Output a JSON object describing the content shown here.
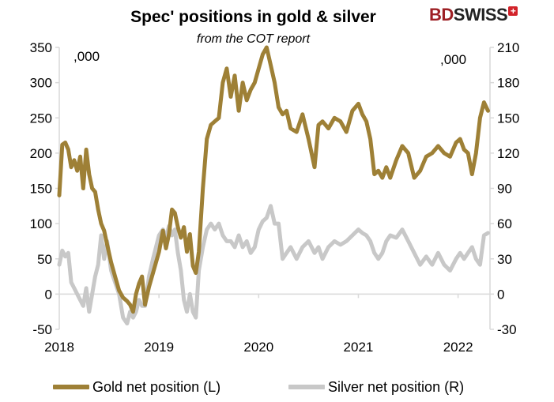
{
  "title": "Spec' positions in gold & silver",
  "subtitle": "from the COT report",
  "logo": {
    "part1": "BD",
    "part2": "SWISS",
    "mark": "+"
  },
  "colors": {
    "gold": "#9e8036",
    "silver": "#c8c8c8",
    "brand_red": "#9d1f24",
    "axis": "#d9d9d9"
  },
  "chart_data": {
    "type": "line",
    "x_ticks": [
      "2018",
      "2019",
      "2020",
      "2021",
      "2022"
    ],
    "x_range": [
      2018.0,
      2022.32
    ],
    "left_axis": {
      "label": "Gold net position (L)",
      "unit_note": ",000",
      "range": [
        -50,
        350
      ],
      "ticks": [
        "-50",
        "0",
        "50",
        "100",
        "150",
        "200",
        "250",
        "300",
        "350"
      ]
    },
    "right_axis": {
      "label": "Silver net position (R)",
      "unit_note": ",000",
      "range": [
        -30,
        210
      ],
      "ticks": [
        "-30",
        "0",
        "30",
        "60",
        "90",
        "120",
        "150",
        "180",
        "210"
      ]
    },
    "series": [
      {
        "name": "Gold net position (L)",
        "axis": "left",
        "x": [
          2018.0,
          2018.03,
          2018.06,
          2018.09,
          2018.12,
          2018.15,
          2018.18,
          2018.21,
          2018.24,
          2018.27,
          2018.3,
          2018.33,
          2018.36,
          2018.39,
          2018.42,
          2018.45,
          2018.48,
          2018.52,
          2018.56,
          2018.6,
          2018.64,
          2018.68,
          2018.71,
          2018.74,
          2018.77,
          2018.8,
          2018.83,
          2018.86,
          2018.9,
          2018.94,
          2018.97,
          2019.0,
          2019.04,
          2019.07,
          2019.1,
          2019.13,
          2019.16,
          2019.19,
          2019.22,
          2019.25,
          2019.28,
          2019.31,
          2019.34,
          2019.37,
          2019.4,
          2019.44,
          2019.48,
          2019.52,
          2019.56,
          2019.6,
          2019.64,
          2019.68,
          2019.72,
          2019.76,
          2019.8,
          2019.84,
          2019.88,
          2019.92,
          2019.96,
          2020.0,
          2020.04,
          2020.08,
          2020.12,
          2020.16,
          2020.2,
          2020.24,
          2020.28,
          2020.32,
          2020.38,
          2020.44,
          2020.5,
          2020.56,
          2020.6,
          2020.64,
          2020.7,
          2020.76,
          2020.82,
          2020.88,
          2020.94,
          2021.0,
          2021.04,
          2021.08,
          2021.12,
          2021.16,
          2021.2,
          2021.24,
          2021.28,
          2021.32,
          2021.38,
          2021.44,
          2021.5,
          2021.56,
          2021.62,
          2021.68,
          2021.74,
          2021.8,
          2021.86,
          2021.92,
          2021.98,
          2022.02,
          2022.06,
          2022.1,
          2022.14,
          2022.18,
          2022.22,
          2022.26,
          2022.3
        ],
        "y": [
          140,
          212,
          215,
          205,
          180,
          190,
          175,
          195,
          150,
          205,
          170,
          150,
          145,
          120,
          100,
          90,
          70,
          45,
          25,
          5,
          -5,
          -10,
          -15,
          -25,
          0,
          15,
          25,
          -15,
          10,
          30,
          45,
          60,
          90,
          65,
          85,
          120,
          115,
          95,
          80,
          95,
          60,
          85,
          40,
          30,
          60,
          150,
          220,
          240,
          245,
          250,
          300,
          320,
          280,
          310,
          260,
          300,
          275,
          290,
          300,
          320,
          340,
          350,
          325,
          300,
          265,
          255,
          260,
          235,
          230,
          255,
          220,
          180,
          240,
          245,
          235,
          250,
          245,
          230,
          260,
          270,
          255,
          245,
          220,
          170,
          175,
          165,
          180,
          165,
          190,
          210,
          200,
          165,
          175,
          195,
          200,
          210,
          200,
          195,
          215,
          220,
          205,
          200,
          170,
          200,
          250,
          272,
          260
        ]
      },
      {
        "name": "Silver net position (R)",
        "axis": "right",
        "x": [
          2018.0,
          2018.03,
          2018.06,
          2018.09,
          2018.12,
          2018.15,
          2018.18,
          2018.21,
          2018.24,
          2018.27,
          2018.3,
          2018.33,
          2018.36,
          2018.39,
          2018.42,
          2018.45,
          2018.48,
          2018.52,
          2018.56,
          2018.6,
          2018.64,
          2018.68,
          2018.71,
          2018.74,
          2018.77,
          2018.8,
          2018.83,
          2018.86,
          2018.9,
          2018.94,
          2018.97,
          2019.0,
          2019.04,
          2019.07,
          2019.1,
          2019.13,
          2019.16,
          2019.19,
          2019.22,
          2019.25,
          2019.28,
          2019.31,
          2019.34,
          2019.37,
          2019.4,
          2019.44,
          2019.48,
          2019.52,
          2019.56,
          2019.6,
          2019.64,
          2019.68,
          2019.72,
          2019.76,
          2019.8,
          2019.84,
          2019.88,
          2019.92,
          2019.96,
          2020.0,
          2020.04,
          2020.08,
          2020.12,
          2020.16,
          2020.2,
          2020.24,
          2020.28,
          2020.32,
          2020.38,
          2020.44,
          2020.5,
          2020.56,
          2020.6,
          2020.64,
          2020.7,
          2020.76,
          2020.82,
          2020.88,
          2020.94,
          2021.0,
          2021.04,
          2021.08,
          2021.12,
          2021.16,
          2021.2,
          2021.24,
          2021.28,
          2021.32,
          2021.38,
          2021.44,
          2021.5,
          2021.56,
          2021.62,
          2021.68,
          2021.74,
          2021.8,
          2021.86,
          2021.92,
          2021.98,
          2022.02,
          2022.06,
          2022.1,
          2022.14,
          2022.18,
          2022.22,
          2022.26,
          2022.3
        ],
        "y": [
          25,
          37,
          32,
          35,
          10,
          5,
          0,
          -5,
          -10,
          5,
          -15,
          0,
          15,
          25,
          50,
          30,
          45,
          20,
          10,
          0,
          -20,
          -25,
          -15,
          -20,
          -15,
          -5,
          -10,
          -10,
          15,
          30,
          40,
          50,
          55,
          48,
          58,
          50,
          55,
          35,
          20,
          -5,
          -15,
          0,
          -15,
          -20,
          20,
          40,
          55,
          60,
          55,
          60,
          50,
          45,
          45,
          40,
          50,
          40,
          45,
          35,
          40,
          55,
          62,
          65,
          75,
          60,
          60,
          30,
          35,
          40,
          30,
          40,
          45,
          35,
          40,
          30,
          40,
          45,
          42,
          45,
          50,
          55,
          52,
          50,
          45,
          35,
          30,
          35,
          45,
          50,
          48,
          55,
          45,
          35,
          25,
          32,
          25,
          35,
          25,
          20,
          30,
          35,
          30,
          35,
          40,
          30,
          25,
          50,
          52
        ]
      }
    ]
  }
}
